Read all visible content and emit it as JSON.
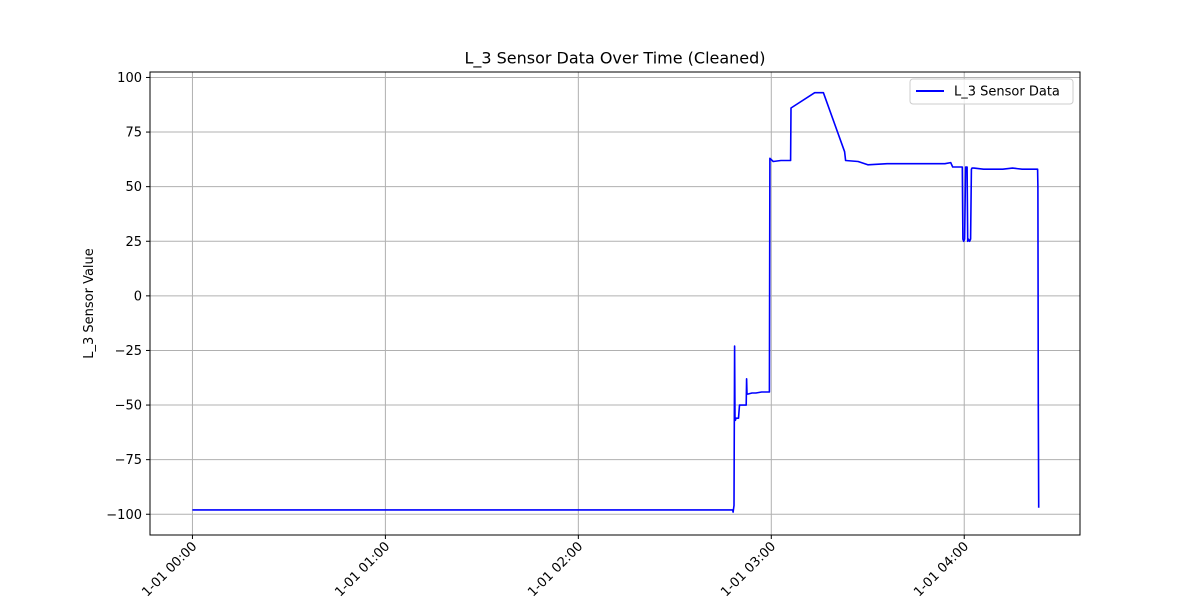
{
  "chart_data": {
    "type": "line",
    "title": "L_3 Sensor Data Over Time (Cleaned)",
    "xlabel": "",
    "ylabel": "L_3 Sensor Value",
    "x_tick_labels": [
      "1-01 00:00",
      "1-01 01:00",
      "1-01 02:00",
      "1-01 03:00",
      "1-01 04:00"
    ],
    "x_tick_hours": [
      0,
      1,
      2,
      3,
      4
    ],
    "y_ticks": [
      -100,
      -75,
      -50,
      -25,
      0,
      25,
      50,
      75,
      100
    ],
    "xlim_hours": [
      -0.22,
      4.6
    ],
    "ylim": [
      -109.5,
      102.5
    ],
    "grid": true,
    "legend": {
      "position": "top-right"
    },
    "series": [
      {
        "name": "L_3 Sensor Data",
        "color": "#0000ff",
        "x_hours": [
          0.0,
          2.8,
          2.802,
          2.805,
          2.807,
          2.81,
          2.812,
          2.814,
          2.817,
          2.82,
          2.825,
          2.83,
          2.835,
          2.838,
          2.84,
          2.86,
          2.87,
          2.872,
          2.874,
          2.878,
          2.9,
          2.92,
          2.95,
          2.975,
          2.985,
          2.99,
          2.993,
          3.01,
          3.05,
          3.08,
          3.1,
          3.102,
          3.225,
          3.27,
          3.38,
          3.385,
          3.45,
          3.5,
          3.6,
          3.7,
          3.8,
          3.9,
          3.93,
          3.935,
          3.94,
          3.96,
          3.99,
          3.993,
          3.997,
          4.002,
          4.007,
          4.01,
          4.015,
          4.018,
          4.022,
          4.028,
          4.033,
          4.037,
          4.04,
          4.05,
          4.1,
          4.2,
          4.25,
          4.3,
          4.35,
          4.38,
          4.382,
          4.384,
          4.386
        ],
        "values": [
          -98,
          -98,
          -99,
          -97,
          -96,
          -23,
          -56,
          -57,
          -56,
          -56,
          -56,
          -56,
          -50,
          -50,
          -50,
          -50,
          -50,
          -38,
          -45,
          -45,
          -44.5,
          -44.5,
          -44,
          -44,
          -44,
          -44,
          63,
          61.5,
          62,
          62,
          62,
          86,
          93,
          93,
          66,
          62,
          61.5,
          60,
          60.5,
          60.5,
          60.5,
          60.5,
          61,
          60,
          59,
          59,
          59,
          26,
          25,
          26,
          59,
          59,
          59,
          25,
          26,
          25,
          26,
          58,
          58.5,
          58.5,
          58,
          58,
          58.5,
          58,
          58,
          58,
          50,
          -50,
          -97
        ]
      }
    ]
  }
}
